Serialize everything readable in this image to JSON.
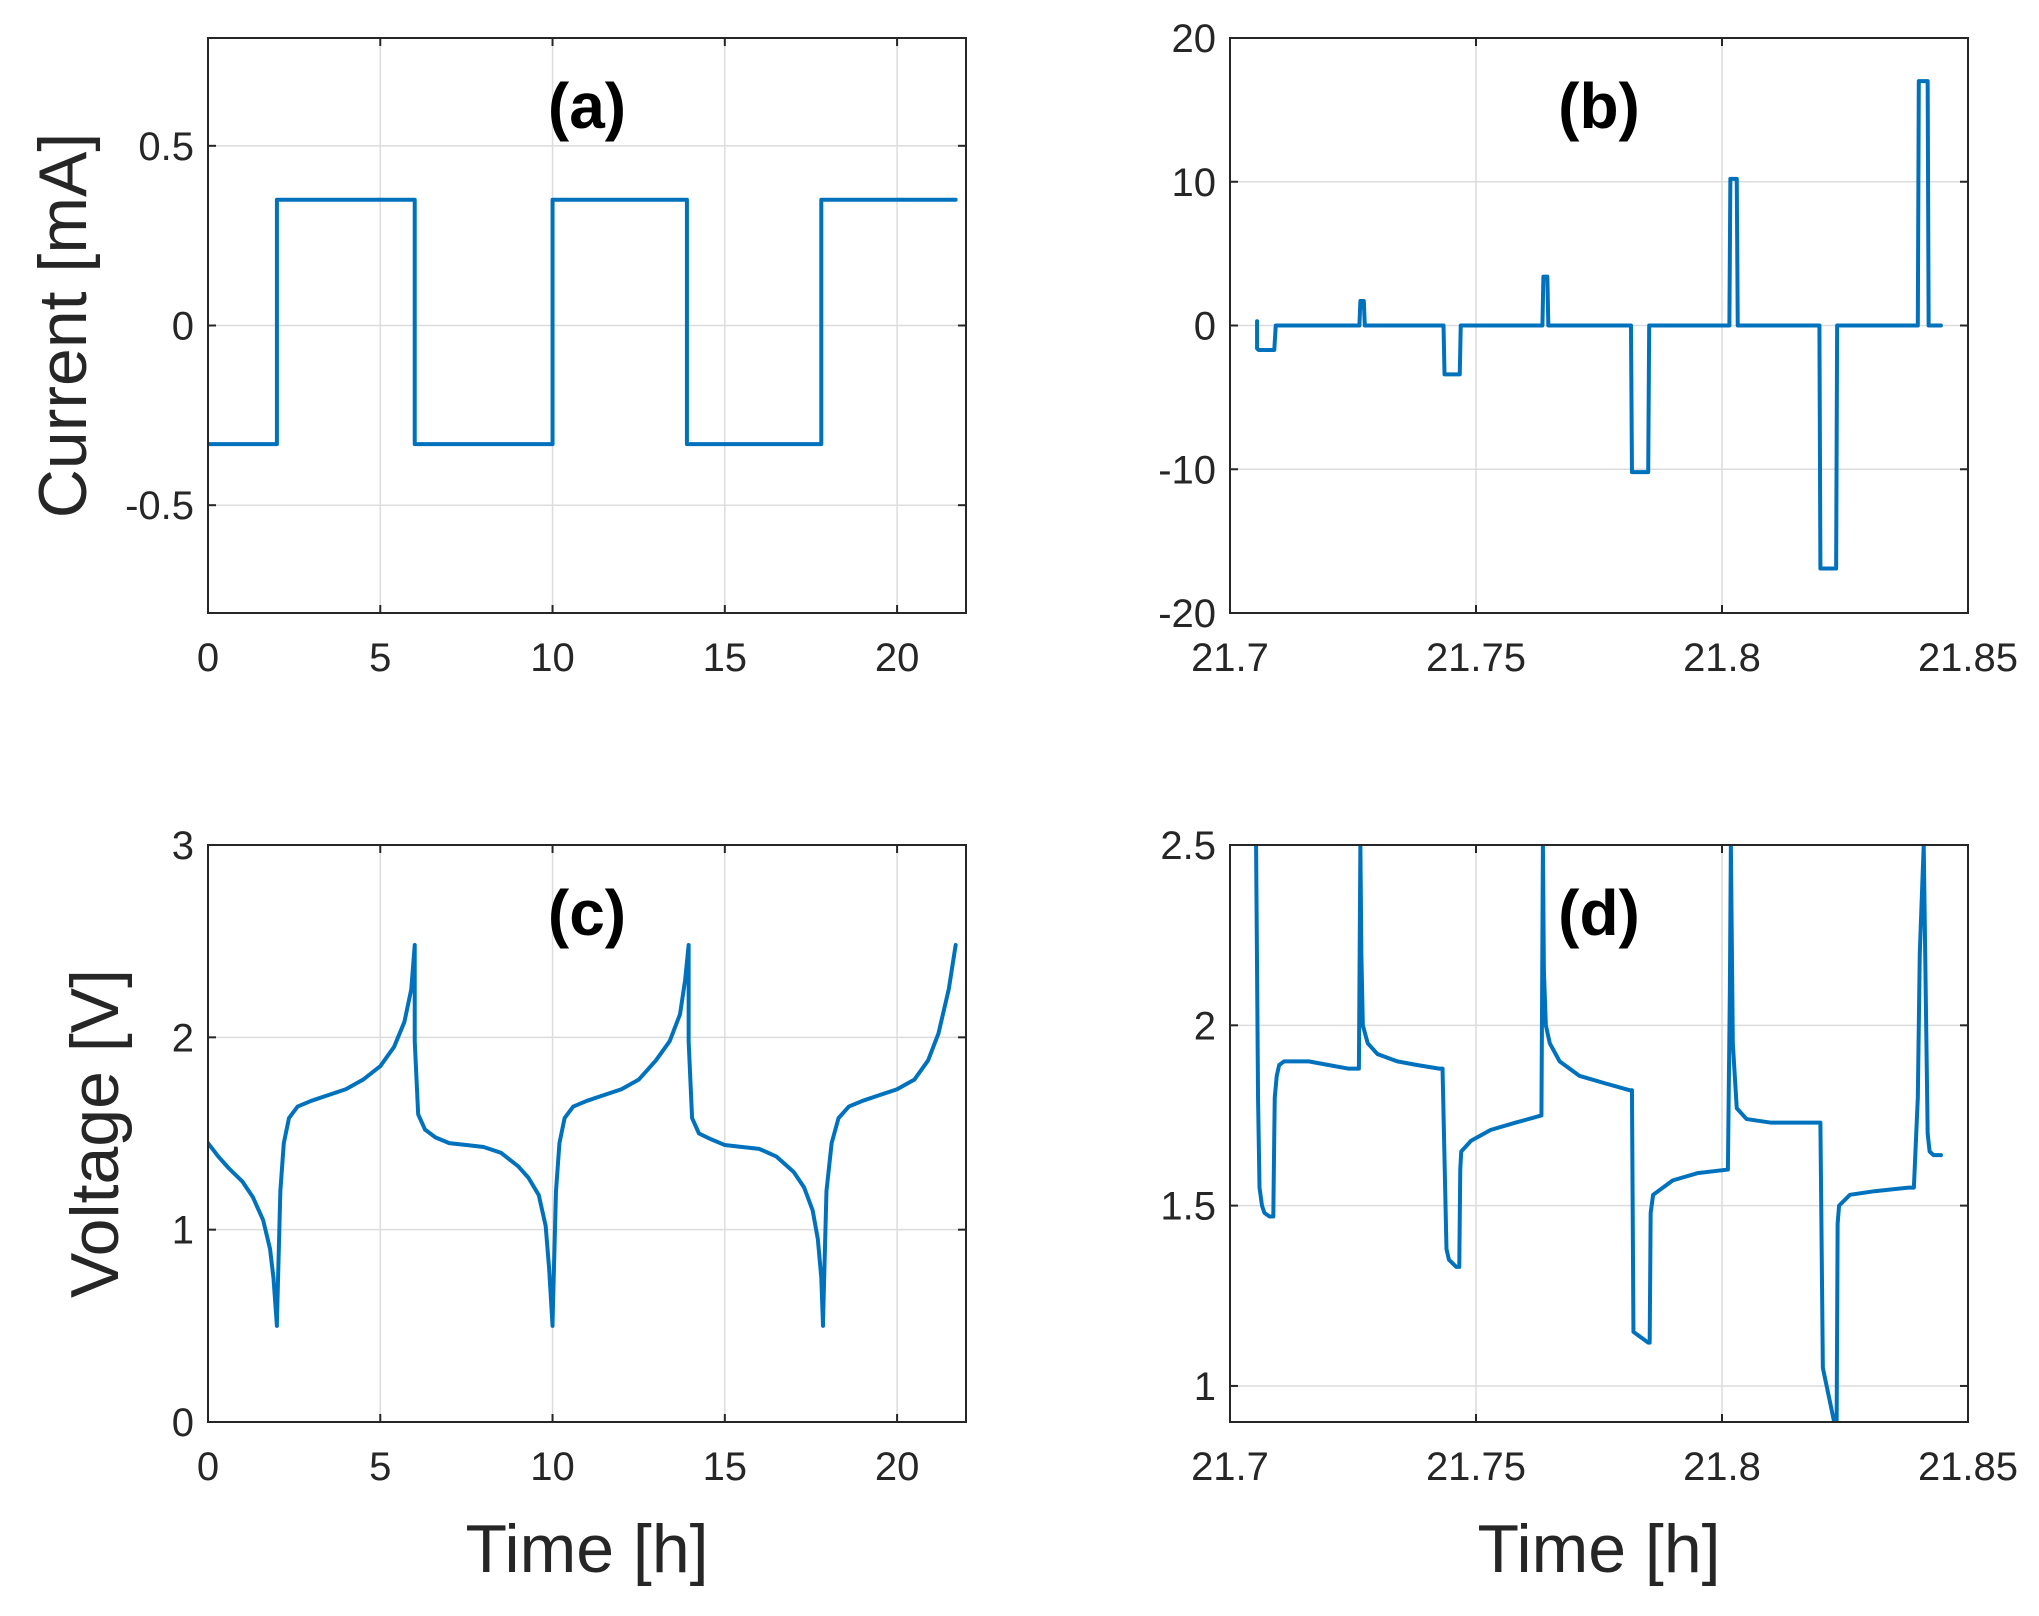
{
  "figure": {
    "series_color": "#0072BD"
  },
  "chart_data": [
    {
      "id": "a",
      "type": "line",
      "panel_label": "(a)",
      "xlabel": "",
      "ylabel": "Current [mA]",
      "xlim": [
        0,
        22
      ],
      "ylim": [
        -0.8,
        0.8
      ],
      "xticks": [
        0,
        5,
        10,
        15,
        20
      ],
      "xtick_labels": [
        "0",
        "5",
        "10",
        "15",
        "20"
      ],
      "yticks": [
        -0.5,
        0,
        0.5
      ],
      "ytick_labels": [
        "-0.5",
        "0",
        "0.5"
      ],
      "grid": true,
      "series": [
        {
          "name": "current",
          "x": [
            0,
            2.0,
            2.0,
            6.0,
            6.0,
            10.0,
            10.0,
            13.9,
            13.9,
            17.8,
            17.8,
            21.7
          ],
          "y": [
            -0.33,
            -0.33,
            0.35,
            0.35,
            -0.33,
            -0.33,
            0.35,
            0.35,
            -0.33,
            -0.33,
            0.35,
            0.35
          ]
        }
      ]
    },
    {
      "id": "b",
      "type": "line",
      "panel_label": "(b)",
      "xlabel": "",
      "ylabel": "",
      "xlim": [
        21.7,
        21.85
      ],
      "ylim": [
        -20,
        20
      ],
      "xticks": [
        21.7,
        21.75,
        21.8,
        21.85
      ],
      "xtick_labels": [
        "21.7",
        "21.75",
        "21.8",
        "21.85"
      ],
      "yticks": [
        -20,
        -10,
        0,
        10,
        20
      ],
      "ytick_labels": [
        "-20",
        "-10",
        "0",
        "10",
        "20"
      ],
      "grid": true,
      "series": [
        {
          "name": "current",
          "x": [
            21.7055,
            21.7055,
            21.7058,
            21.709,
            21.7093,
            21.7263,
            21.7265,
            21.7272,
            21.7274,
            21.7434,
            21.7436,
            21.7467,
            21.7469,
            21.7635,
            21.7637,
            21.7645,
            21.7647,
            21.7815,
            21.7817,
            21.785,
            21.7852,
            21.8015,
            21.8017,
            21.803,
            21.8032,
            21.8198,
            21.82,
            21.8232,
            21.8234,
            21.8398,
            21.84,
            21.8418,
            21.842,
            21.8445
          ],
          "y": [
            0.3,
            -1.6,
            -1.7,
            -1.7,
            0,
            0,
            1.7,
            1.7,
            0,
            0,
            -3.4,
            -3.4,
            0,
            0,
            3.4,
            3.4,
            0,
            0,
            -10.2,
            -10.2,
            0,
            0,
            10.2,
            10.2,
            0,
            0,
            -16.9,
            -16.9,
            0,
            0,
            17,
            17,
            0,
            0
          ]
        }
      ]
    },
    {
      "id": "c",
      "type": "line",
      "panel_label": "(c)",
      "xlabel": "Time [h]",
      "ylabel": "Voltage [V]",
      "xlim": [
        0,
        22
      ],
      "ylim": [
        0,
        3
      ],
      "xticks": [
        0,
        5,
        10,
        15,
        20
      ],
      "xtick_labels": [
        "0",
        "5",
        "10",
        "15",
        "20"
      ],
      "yticks": [
        0,
        1,
        2,
        3
      ],
      "ytick_labels": [
        "0",
        "1",
        "2",
        "3"
      ],
      "grid": true,
      "series": [
        {
          "name": "voltage",
          "x": [
            0,
            0.3,
            0.6,
            1.0,
            1.3,
            1.6,
            1.8,
            1.9,
            2.0,
            2.0,
            2.1,
            2.2,
            2.35,
            2.6,
            3.0,
            3.5,
            4.0,
            4.5,
            5.0,
            5.4,
            5.7,
            5.9,
            6.0,
            6.0,
            6.1,
            6.3,
            6.6,
            7.0,
            7.5,
            8.0,
            8.5,
            9.0,
            9.3,
            9.6,
            9.8,
            9.9,
            10.0,
            10.0,
            10.1,
            10.2,
            10.35,
            10.6,
            11.0,
            11.5,
            12.0,
            12.5,
            13.0,
            13.4,
            13.7,
            13.85,
            13.95,
            13.95,
            14.05,
            14.25,
            14.6,
            15.0,
            15.5,
            16.0,
            16.5,
            17.0,
            17.3,
            17.55,
            17.7,
            17.8,
            17.85,
            17.85,
            17.95,
            18.1,
            18.3,
            18.6,
            19.0,
            19.5,
            20.0,
            20.5,
            20.9,
            21.2,
            21.5,
            21.7
          ],
          "y": [
            1.45,
            1.38,
            1.32,
            1.25,
            1.17,
            1.05,
            0.9,
            0.75,
            0.5,
            0.52,
            1.2,
            1.45,
            1.58,
            1.64,
            1.67,
            1.7,
            1.73,
            1.78,
            1.85,
            1.95,
            2.08,
            2.25,
            2.48,
            1.98,
            1.6,
            1.52,
            1.48,
            1.45,
            1.44,
            1.43,
            1.4,
            1.33,
            1.27,
            1.18,
            1.02,
            0.8,
            0.5,
            0.52,
            1.2,
            1.45,
            1.58,
            1.64,
            1.67,
            1.7,
            1.73,
            1.78,
            1.88,
            1.98,
            2.12,
            2.3,
            2.48,
            1.98,
            1.58,
            1.5,
            1.47,
            1.44,
            1.43,
            1.42,
            1.38,
            1.3,
            1.22,
            1.1,
            0.95,
            0.75,
            0.5,
            0.52,
            1.2,
            1.45,
            1.58,
            1.64,
            1.67,
            1.7,
            1.73,
            1.78,
            1.88,
            2.02,
            2.25,
            2.48
          ]
        }
      ]
    },
    {
      "id": "d",
      "type": "line",
      "panel_label": "(d)",
      "xlabel": "Time [h]",
      "ylabel": "",
      "xlim": [
        21.7,
        21.85
      ],
      "ylim": [
        0.9,
        2.5
      ],
      "xticks": [
        21.7,
        21.75,
        21.8,
        21.85
      ],
      "xtick_labels": [
        "21.7",
        "21.75",
        "21.8",
        "21.85"
      ],
      "yticks": [
        1,
        1.5,
        2,
        2.5
      ],
      "ytick_labels": [
        "1",
        "1.5",
        "2",
        "2.5"
      ],
      "grid": true,
      "series": [
        {
          "name": "voltage",
          "x": [
            21.7053,
            21.7057,
            21.706,
            21.7065,
            21.707,
            21.708,
            21.7088,
            21.709,
            21.7091,
            21.7095,
            21.71,
            21.711,
            21.713,
            21.716,
            21.72,
            21.724,
            21.7262,
            21.7265,
            21.7267,
            21.727,
            21.728,
            21.73,
            21.734,
            21.738,
            21.7425,
            21.7432,
            21.7436,
            21.744,
            21.7445,
            21.746,
            21.7466,
            21.7468,
            21.747,
            21.749,
            21.753,
            21.758,
            21.7633,
            21.7636,
            21.7638,
            21.7642,
            21.765,
            21.767,
            21.771,
            21.776,
            21.7812,
            21.7817,
            21.782,
            21.785,
            21.7853,
            21.7855,
            21.786,
            21.79,
            21.795,
            21.8012,
            21.8016,
            21.8018,
            21.8022,
            21.803,
            21.805,
            21.81,
            21.815,
            21.8195,
            21.82,
            21.8205,
            21.8228,
            21.8233,
            21.8235,
            21.8238,
            21.826,
            21.831,
            21.838,
            21.839,
            21.8398,
            21.8402,
            21.841,
            21.8418,
            21.8422,
            21.843,
            21.8445
          ],
          "y": [
            2.5,
            1.8,
            1.55,
            1.5,
            1.48,
            1.47,
            1.47,
            1.7,
            1.8,
            1.86,
            1.89,
            1.9,
            1.9,
            1.9,
            1.89,
            1.88,
            1.88,
            2.5,
            2.2,
            2.0,
            1.95,
            1.92,
            1.9,
            1.89,
            1.88,
            1.88,
            1.63,
            1.38,
            1.35,
            1.33,
            1.33,
            1.6,
            1.65,
            1.68,
            1.71,
            1.73,
            1.75,
            2.5,
            2.15,
            2.0,
            1.95,
            1.9,
            1.86,
            1.84,
            1.82,
            1.82,
            1.15,
            1.12,
            1.12,
            1.48,
            1.53,
            1.57,
            1.59,
            1.6,
            2.1,
            2.5,
            1.95,
            1.77,
            1.74,
            1.73,
            1.73,
            1.73,
            1.73,
            1.05,
            0.9,
            0.9,
            1.45,
            1.5,
            1.53,
            1.54,
            1.55,
            1.55,
            1.8,
            2.2,
            2.5,
            1.7,
            1.65,
            1.64,
            1.64
          ]
        }
      ]
    }
  ]
}
